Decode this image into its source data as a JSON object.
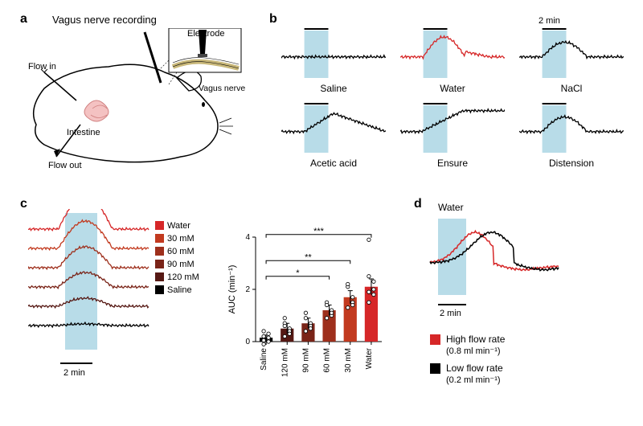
{
  "panels": {
    "a": {
      "label": "a",
      "title": "Vagus nerve recording",
      "electrode_label": "Electrode",
      "nerve_label": "Vagus nerve",
      "flow_in": "Flow in",
      "flow_out": "Flow out",
      "intestine": "Intestine"
    },
    "b": {
      "label": "b",
      "scale": "2 min",
      "traces": [
        {
          "name": "Saline",
          "color": "#000000",
          "shape": "flat"
        },
        {
          "name": "Water",
          "color": "#d62728",
          "shape": "peak"
        },
        {
          "name": "NaCl",
          "color": "#000000",
          "shape": "smallpeak"
        },
        {
          "name": "Acetic acid",
          "color": "#000000",
          "shape": "rise"
        },
        {
          "name": "Ensure",
          "color": "#000000",
          "shape": "bigrise"
        },
        {
          "name": "Distension",
          "color": "#000000",
          "shape": "smallpeak"
        }
      ],
      "highlight_color": "#b8dce8"
    },
    "c": {
      "label": "c",
      "scale": "2 min",
      "highlight_color": "#b8dce8",
      "traces": [
        {
          "label": "Water",
          "color": "#d62728"
        },
        {
          "label": "30 mM",
          "color": "#c23a1f"
        },
        {
          "label": "60 mM",
          "color": "#9e2f1c"
        },
        {
          "label": "90 mM",
          "color": "#7a2418"
        },
        {
          "label": "120 mM",
          "color": "#561914"
        },
        {
          "label": "Saline",
          "color": "#000000"
        }
      ],
      "bar_chart": {
        "ylabel": "AUC (min⁻¹)",
        "ymax": 4,
        "ytick_step": 2,
        "categories": [
          "Saline",
          "120 mM",
          "90 mM",
          "60 mM",
          "30 mM",
          "Water"
        ],
        "values": [
          0.15,
          0.5,
          0.7,
          1.2,
          1.7,
          2.1
        ],
        "errors": [
          0.1,
          0.2,
          0.2,
          0.2,
          0.25,
          0.3
        ],
        "colors": [
          "#000000",
          "#561914",
          "#7a2418",
          "#9e2f1c",
          "#c23a1f",
          "#d62728"
        ],
        "points": [
          [
            0.05,
            0.1,
            0.2,
            0.3,
            -0.1,
            0.15,
            0.4,
            0.0
          ],
          [
            0.2,
            0.5,
            0.7,
            0.4,
            0.9,
            0.3,
            0.6
          ],
          [
            0.4,
            0.7,
            0.9,
            0.6,
            1.1,
            0.5
          ],
          [
            0.9,
            1.2,
            1.5,
            1.0,
            1.4,
            1.1
          ],
          [
            1.3,
            1.7,
            2.1,
            1.5,
            2.2,
            1.4
          ],
          [
            1.5,
            2.0,
            2.5,
            1.8,
            3.9,
            2.3,
            1.9
          ]
        ],
        "sig": [
          {
            "from": 0,
            "to": 3,
            "label": "*",
            "y": 2.5
          },
          {
            "from": 0,
            "to": 4,
            "label": "**",
            "y": 3.1
          },
          {
            "from": 0,
            "to": 5,
            "label": "***",
            "y": 4.1
          }
        ]
      }
    },
    "d": {
      "label": "d",
      "title": "Water",
      "scale": "2 min",
      "highlight_color": "#b8dce8",
      "traces": [
        {
          "label": "High flow rate",
          "sublabel": "(0.8 ml min⁻¹)",
          "color": "#d62728"
        },
        {
          "label": "Low flow rate",
          "sublabel": "(0.2 ml min⁻¹)",
          "color": "#000000"
        }
      ]
    }
  }
}
